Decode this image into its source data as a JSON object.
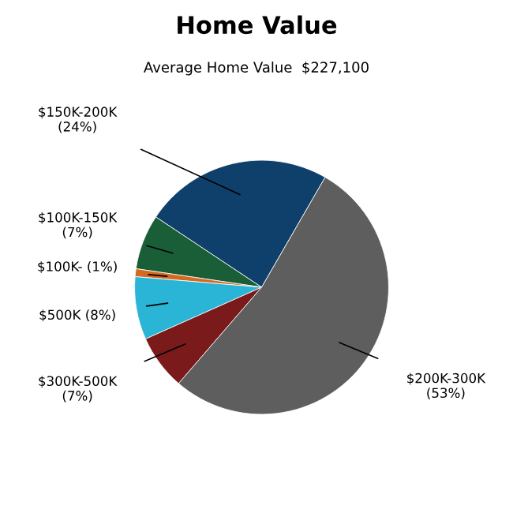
{
  "chart_data": {
    "type": "pie",
    "title": "Home Value",
    "subtitle": "Average Home Value  $227,100",
    "categories": [
      "$150K-200K",
      "$100K-150K",
      "$100K-",
      "$500K",
      "$300K-500K",
      "$200K-300K"
    ],
    "values": [
      24,
      7,
      1,
      8,
      7,
      53
    ],
    "value_labels": [
      "(24%)",
      "(7%)",
      "(1%)",
      "(8%)",
      "(7%)",
      "(53%)"
    ],
    "colors": [
      "#0f3f6b",
      "#1a5e38",
      "#d4691f",
      "#2ab5d6",
      "#7a1a1a",
      "#5e5e5e"
    ]
  }
}
